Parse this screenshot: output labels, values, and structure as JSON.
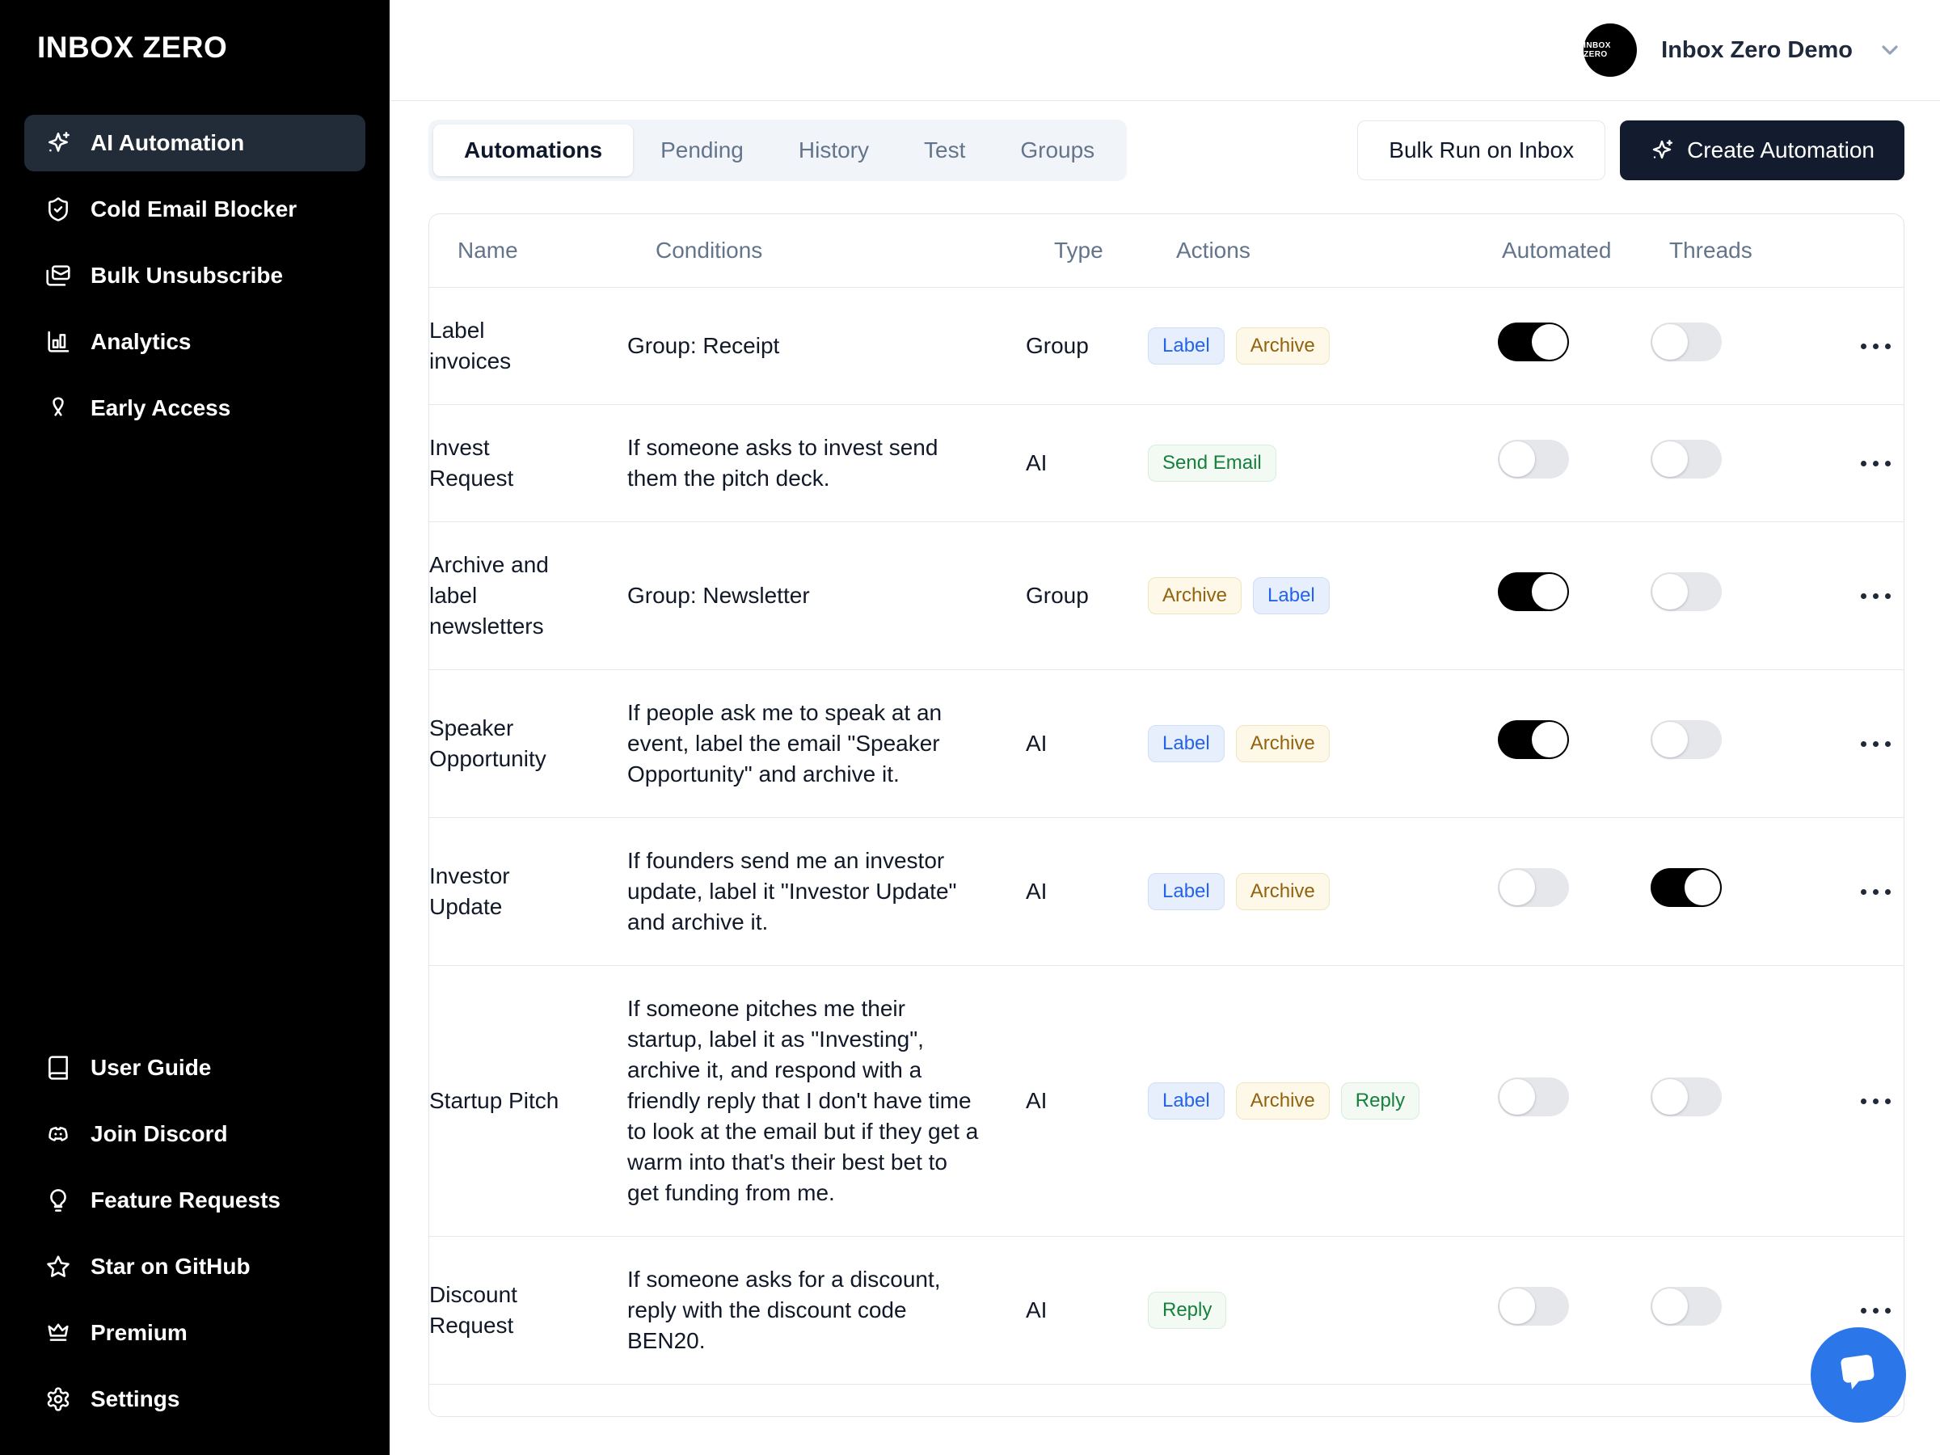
{
  "app": {
    "name": "INBOX ZERO"
  },
  "sidebar": {
    "items": [
      {
        "label": "AI Automation",
        "icon": "sparkles",
        "active": true
      },
      {
        "label": "Cold Email Blocker",
        "icon": "shield-check",
        "active": false
      },
      {
        "label": "Bulk Unsubscribe",
        "icon": "mails",
        "active": false
      },
      {
        "label": "Analytics",
        "icon": "bar-chart",
        "active": false
      },
      {
        "label": "Early Access",
        "icon": "ribbon",
        "active": false
      }
    ],
    "footer_items": [
      {
        "label": "User Guide",
        "icon": "book"
      },
      {
        "label": "Join Discord",
        "icon": "discord"
      },
      {
        "label": "Feature Requests",
        "icon": "lightbulb"
      },
      {
        "label": "Star on GitHub",
        "icon": "star"
      },
      {
        "label": "Premium",
        "icon": "crown"
      },
      {
        "label": "Settings",
        "icon": "gear"
      }
    ]
  },
  "header": {
    "account_name": "Inbox Zero Demo",
    "avatar_text": "INBOX ZERO"
  },
  "toolbar": {
    "tabs": [
      {
        "label": "Automations",
        "active": true
      },
      {
        "label": "Pending",
        "active": false
      },
      {
        "label": "History",
        "active": false
      },
      {
        "label": "Test",
        "active": false
      },
      {
        "label": "Groups",
        "active": false
      }
    ],
    "bulk_run_label": "Bulk Run on Inbox",
    "create_automation_label": "Create Automation"
  },
  "table": {
    "columns": [
      "Name",
      "Conditions",
      "Type",
      "Actions",
      "Automated",
      "Threads"
    ],
    "rows": [
      {
        "name": "Label invoices",
        "conditions": "Group: Receipt",
        "type": "Group",
        "actions": [
          {
            "label": "Label",
            "color": "blue"
          },
          {
            "label": "Archive",
            "color": "yellow"
          }
        ],
        "automated": true,
        "threads": false
      },
      {
        "name": "Invest Request",
        "conditions": "If someone asks to invest send them the pitch deck.",
        "type": "AI",
        "actions": [
          {
            "label": "Send Email",
            "color": "green"
          }
        ],
        "automated": false,
        "threads": false
      },
      {
        "name": "Archive and label newsletters",
        "conditions": "Group: Newsletter",
        "type": "Group",
        "actions": [
          {
            "label": "Archive",
            "color": "yellow"
          },
          {
            "label": "Label",
            "color": "blue"
          }
        ],
        "automated": true,
        "threads": false
      },
      {
        "name": "Speaker Opportunity",
        "conditions": "If people ask me to speak at an event, label the email \"Speaker Opportunity\" and archive it.",
        "type": "AI",
        "actions": [
          {
            "label": "Label",
            "color": "blue"
          },
          {
            "label": "Archive",
            "color": "yellow"
          }
        ],
        "automated": true,
        "threads": false
      },
      {
        "name": "Investor Update",
        "conditions": "If founders send me an investor update, label it \"Investor Update\" and archive it.",
        "type": "AI",
        "actions": [
          {
            "label": "Label",
            "color": "blue"
          },
          {
            "label": "Archive",
            "color": "yellow"
          }
        ],
        "automated": false,
        "threads": true
      },
      {
        "name": "Startup Pitch",
        "conditions": "If someone pitches me their startup, label it as \"Investing\", archive it, and respond with a friendly reply that I don't have time to look at the email but if they get a warm into that's their best bet to get funding from me.",
        "type": "AI",
        "actions": [
          {
            "label": "Label",
            "color": "blue"
          },
          {
            "label": "Archive",
            "color": "yellow"
          },
          {
            "label": "Reply",
            "color": "green"
          }
        ],
        "automated": false,
        "threads": false
      },
      {
        "name": "Discount Request",
        "conditions": "If someone asks for a discount, reply with the discount code BEN20.",
        "type": "AI",
        "actions": [
          {
            "label": "Reply",
            "color": "green"
          }
        ],
        "automated": false,
        "threads": false
      }
    ]
  },
  "chat": {
    "icon": "chat-bubble"
  },
  "colors": {
    "sidebar_bg": "#000000",
    "sidebar_active_bg": "#222b38",
    "accent_dark": "#131c2e",
    "toggle_on": "#000000",
    "toggle_off": "#e5e7eb",
    "badge_blue_text": "#2563eb",
    "badge_yellow_text": "#92620e",
    "badge_green_text": "#16803c",
    "chat_fab": "#2b76e8"
  }
}
